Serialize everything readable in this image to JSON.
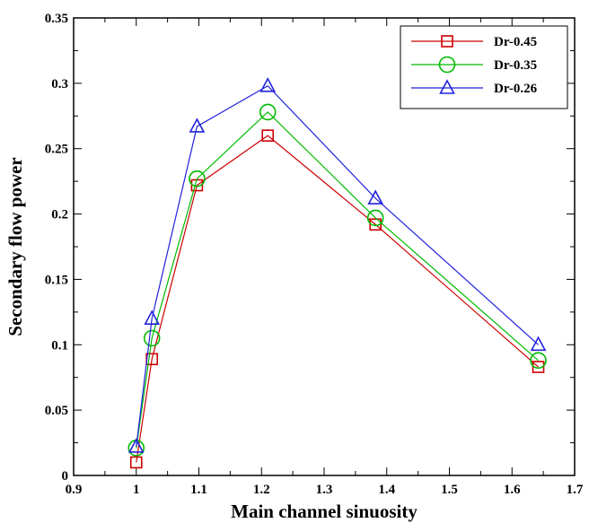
{
  "chart_data": {
    "type": "line",
    "title": "",
    "xlabel": "Main channel sinuosity",
    "ylabel": "Secondary flow power",
    "xlim": [
      0.9,
      1.7
    ],
    "ylim": [
      0,
      0.35
    ],
    "x_ticks": [
      0.9,
      1,
      1.1,
      1.2,
      1.3,
      1.4,
      1.5,
      1.6,
      1.7
    ],
    "x_tick_labels": [
      "0.9",
      "1",
      "1.1",
      "1.2",
      "1.3",
      "1.4",
      "1.5",
      "1.6",
      "1.7"
    ],
    "y_ticks": [
      0,
      0.05,
      0.1,
      0.15,
      0.2,
      0.25,
      0.3,
      0.35
    ],
    "y_tick_labels": [
      "0",
      "0.05",
      "0.1",
      "0.15",
      "0.2",
      "0.25",
      "0.3",
      "0.35"
    ],
    "grid": false,
    "legend_position": "top-right",
    "x": [
      1.0,
      1.025,
      1.097,
      1.21,
      1.382,
      1.642
    ],
    "series": [
      {
        "name": "Dr-0.45",
        "color": "#cc0000",
        "marker": "square",
        "values": [
          0.01,
          0.089,
          0.222,
          0.26,
          0.192,
          0.083
        ]
      },
      {
        "name": "Dr-0.35",
        "color": "#00bb00",
        "marker": "circle",
        "values": [
          0.021,
          0.105,
          0.227,
          0.278,
          0.197,
          0.088
        ]
      },
      {
        "name": "Dr-0.26",
        "color": "#2222dd",
        "marker": "triangle",
        "values": [
          0.022,
          0.12,
          0.267,
          0.298,
          0.212,
          0.1
        ]
      }
    ]
  }
}
